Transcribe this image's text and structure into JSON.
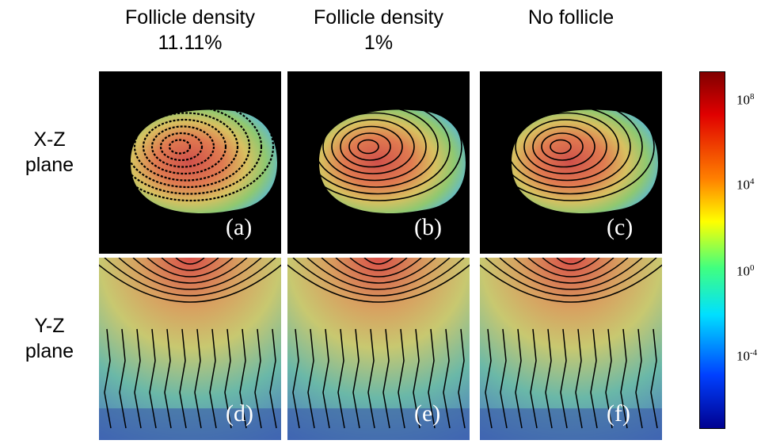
{
  "columns": [
    "Follicle density\n11.11%",
    "Follicle density\n1%",
    "No follicle"
  ],
  "rows": [
    "X-Z\nplane",
    "Y-Z\nplane"
  ],
  "panels": [
    [
      "(a)",
      "(b)",
      "(c)"
    ],
    [
      "(d)",
      "(e)",
      "(f)"
    ]
  ],
  "colorbar": {
    "ticks": [
      {
        "base": "10",
        "exponent": "8"
      },
      {
        "base": "10",
        "exponent": "4"
      },
      {
        "base": "10",
        "exponent": "0"
      },
      {
        "base": "10",
        "exponent": "-4"
      }
    ]
  }
}
